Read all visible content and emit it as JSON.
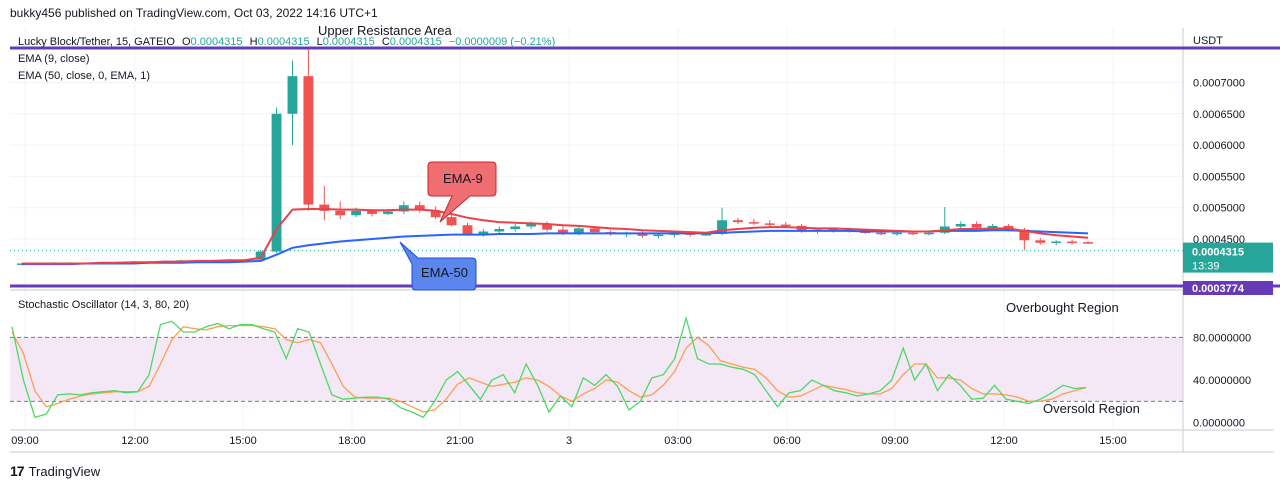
{
  "caption": "bukky456 published on TradingView.com, Oct 03, 2022 14:16 UTC+1",
  "footer": {
    "brand": "TradingView"
  },
  "colors": {
    "up": "#26a69a",
    "down": "#ef5350",
    "ema9": "#e8424b",
    "ema50": "#2962ff",
    "resistance": "#673ab7",
    "stoch_k": "#4cd964",
    "stoch_d": "#ff9d52",
    "stoch_band": "#f3e5f5"
  },
  "legend": {
    "symbol": "Lucky Block/Tether, 15, GATEIO",
    "o_label": "O",
    "o": "0.0004315",
    "h_label": "H",
    "h": "0.0004315",
    "l_label": "L",
    "l": "0.0004315",
    "c_label": "C",
    "c": "0.0004315",
    "change": "−0.0000009 (−0.21%)",
    "ema9": "EMA (9, close)",
    "ema50": "EMA (50, close, 0, EMA, 1)"
  },
  "annotations": {
    "upper_resistance": "Upper Resistance Area",
    "ema9_callout": "EMA-9",
    "ema50_callout": "EMA-50",
    "overbought": "Overbought Region",
    "oversold": "Oversold Region"
  },
  "price_axis": {
    "currency": "USDT",
    "ticks": [
      "0.0007000",
      "0.0006500",
      "0.0006000",
      "0.0005500",
      "0.0005000",
      "0.0004500"
    ],
    "last_price": "0.0004315",
    "countdown": "13:39",
    "support_price": "0.0003774"
  },
  "oscillator": {
    "title": "Stochastic Oscillator (14, 3, 80, 20)",
    "ticks": [
      "80.0000000",
      "40.0000000",
      "0.0000000"
    ]
  },
  "time_axis": [
    "09:00",
    "12:00",
    "15:00",
    "18:00",
    "21:00",
    "3",
    "03:00",
    "06:00",
    "09:00",
    "12:00",
    "15:00"
  ],
  "chart_data": [
    {
      "type": "candlestick",
      "title": "Lucky Block/Tether, 15, GATEIO",
      "ylabel": "USDT",
      "ylim": [
        0.000375,
        0.000755
      ],
      "resistance_level": 0.000755,
      "support_level": 0.0003774,
      "last_price": 0.0004315,
      "candles_ohlc": [
        [
          0.00041,
          0.000412,
          0.000408,
          0.000411
        ],
        [
          0.000411,
          0.000412,
          0.000409,
          0.00041
        ],
        [
          0.00041,
          0.000413,
          0.000409,
          0.000412
        ],
        [
          0.000412,
          0.000413,
          0.00041,
          0.000411
        ],
        [
          0.000411,
          0.000413,
          0.00041,
          0.000412
        ],
        [
          0.000412,
          0.000413,
          0.000411,
          0.000412
        ],
        [
          0.000412,
          0.000414,
          0.000411,
          0.000413
        ],
        [
          0.000413,
          0.000415,
          0.000412,
          0.000414
        ],
        [
          0.000414,
          0.000415,
          0.000413,
          0.000414
        ],
        [
          0.000414,
          0.000416,
          0.000413,
          0.000415
        ],
        [
          0.000415,
          0.000417,
          0.000414,
          0.000416
        ],
        [
          0.000416,
          0.000417,
          0.000414,
          0.000415
        ],
        [
          0.000415,
          0.000417,
          0.000414,
          0.000416
        ],
        [
          0.000416,
          0.000418,
          0.000415,
          0.000417
        ],
        [
          0.000417,
          0.000418,
          0.000416,
          0.000417
        ],
        [
          0.000417,
          0.000432,
          0.000416,
          0.00043
        ],
        [
          0.00043,
          0.00066,
          0.000428,
          0.00065
        ],
        [
          0.00065,
          0.000735,
          0.0006,
          0.00071
        ],
        [
          0.00071,
          0.000755,
          0.000495,
          0.000505
        ],
        [
          0.000505,
          0.000535,
          0.00048,
          0.000495
        ],
        [
          0.000495,
          0.00051,
          0.000482,
          0.000488
        ],
        [
          0.000488,
          0.0005,
          0.000485,
          0.000495
        ],
        [
          0.000495,
          0.000498,
          0.000486,
          0.00049
        ],
        [
          0.00049,
          0.000498,
          0.000488,
          0.000494
        ],
        [
          0.000494,
          0.00051,
          0.00049,
          0.000504
        ],
        [
          0.000504,
          0.00051,
          0.000492,
          0.000496
        ],
        [
          0.000496,
          0.000502,
          0.000482,
          0.000485
        ],
        [
          0.000485,
          0.00049,
          0.00047,
          0.000472
        ],
        [
          0.000472,
          0.000476,
          0.000455,
          0.000458
        ],
        [
          0.000458,
          0.000466,
          0.000454,
          0.000462
        ],
        [
          0.000462,
          0.00047,
          0.000458,
          0.000466
        ],
        [
          0.000466,
          0.000474,
          0.000462,
          0.00047
        ],
        [
          0.00047,
          0.000478,
          0.000466,
          0.000474
        ],
        [
          0.000474,
          0.000478,
          0.000462,
          0.000465
        ],
        [
          0.000465,
          0.00047,
          0.000456,
          0.00046
        ],
        [
          0.00046,
          0.00047,
          0.000456,
          0.000467
        ],
        [
          0.000467,
          0.00047,
          0.000458,
          0.000461
        ],
        [
          0.000461,
          0.000464,
          0.000455,
          0.000458
        ],
        [
          0.000458,
          0.000462,
          0.000453,
          0.00046
        ],
        [
          0.00046,
          0.000462,
          0.000452,
          0.000455
        ],
        [
          0.000455,
          0.00046,
          0.000451,
          0.000457
        ],
        [
          0.000457,
          0.000462,
          0.000452,
          0.000459
        ],
        [
          0.000459,
          0.000462,
          0.000454,
          0.000457
        ],
        [
          0.000457,
          0.00046,
          0.000455,
          0.000458
        ],
        [
          0.000458,
          0.0005,
          0.000456,
          0.00048
        ],
        [
          0.00048,
          0.000484,
          0.000474,
          0.000477
        ],
        [
          0.000477,
          0.000482,
          0.000472,
          0.000475
        ],
        [
          0.000475,
          0.00048,
          0.00047,
          0.000473
        ],
        [
          0.000473,
          0.000477,
          0.000468,
          0.000471
        ],
        [
          0.000471,
          0.000474,
          0.00046,
          0.000463
        ],
        [
          0.000463,
          0.000467,
          0.000458,
          0.000465
        ],
        [
          0.000465,
          0.000468,
          0.00046,
          0.000466
        ],
        [
          0.000466,
          0.000468,
          0.00046,
          0.000462
        ],
        [
          0.000462,
          0.000465,
          0.000458,
          0.00046
        ],
        [
          0.00046,
          0.000462,
          0.000456,
          0.000458
        ],
        [
          0.000458,
          0.000462,
          0.000455,
          0.00046
        ],
        [
          0.00046,
          0.000462,
          0.000456,
          0.000458
        ],
        [
          0.000458,
          0.000462,
          0.000456,
          0.00046
        ],
        [
          0.00046,
          0.000501,
          0.000458,
          0.00047
        ],
        [
          0.00047,
          0.000478,
          0.000466,
          0.000474
        ],
        [
          0.000474,
          0.000478,
          0.000466,
          0.000468
        ],
        [
          0.000468,
          0.000474,
          0.000464,
          0.000471
        ],
        [
          0.000471,
          0.000474,
          0.000462,
          0.000465
        ],
        [
          0.000465,
          0.000468,
          0.000432,
          0.000448
        ],
        [
          0.000448,
          0.000452,
          0.000441,
          0.000444
        ],
        [
          0.000444,
          0.000448,
          0.00044,
          0.000446
        ],
        [
          0.000446,
          0.000449,
          0.000441,
          0.000445
        ],
        [
          0.000445,
          0.000447,
          0.000442,
          0.000444
        ]
      ],
      "ema9": [
        0.000411,
        0.000411,
        0.000411,
        0.000411,
        0.000411,
        0.000412,
        0.000412,
        0.000413,
        0.000413,
        0.000414,
        0.000414,
        0.000415,
        0.000415,
        0.000416,
        0.000416,
        0.00042,
        0.000466,
        0.000497,
        0.000498,
        0.000498,
        0.000497,
        0.000497,
        0.000496,
        0.000496,
        0.000497,
        0.000497,
        0.000495,
        0.00049,
        0.000484,
        0.00048,
        0.000477,
        0.000476,
        0.000475,
        0.000474,
        0.000472,
        0.000471,
        0.000469,
        0.000467,
        0.000466,
        0.000464,
        0.000463,
        0.000462,
        0.000461,
        0.00046,
        0.000464,
        0.000466,
        0.000468,
        0.000469,
        0.000469,
        0.000468,
        0.000467,
        0.000467,
        0.000466,
        0.000465,
        0.000464,
        0.000463,
        0.000462,
        0.000462,
        0.000464,
        0.000466,
        0.000466,
        0.000467,
        0.000467,
        0.000463,
        0.000459,
        0.000456,
        0.000454,
        0.000452
      ],
      "ema50": [
        0.00041,
        0.00041,
        0.00041,
        0.00041,
        0.000411,
        0.000411,
        0.000411,
        0.000411,
        0.000412,
        0.000412,
        0.000412,
        0.000413,
        0.000413,
        0.000413,
        0.000414,
        0.000415,
        0.000425,
        0.000436,
        0.00044,
        0.000443,
        0.000446,
        0.000448,
        0.00045,
        0.000452,
        0.000454,
        0.000455,
        0.000456,
        0.000457,
        0.000457,
        0.000457,
        0.000458,
        0.000458,
        0.000458,
        0.000459,
        0.000459,
        0.000459,
        0.000459,
        0.000459,
        0.000459,
        0.000459,
        0.000459,
        0.000459,
        0.000459,
        0.000459,
        0.00046,
        0.000461,
        0.000462,
        0.000463,
        0.000463,
        0.000463,
        0.000463,
        0.000463,
        0.000463,
        0.000462,
        0.000462,
        0.000462,
        0.000462,
        0.000462,
        0.000463,
        0.000463,
        0.000463,
        0.000464,
        0.000464,
        0.000463,
        0.000462,
        0.000461,
        0.00046,
        0.000459
      ]
    },
    {
      "type": "line",
      "title": "Stochastic Oscillator (14, 3, 80, 20)",
      "ylim": [
        0,
        100
      ],
      "overbought": 80,
      "oversold": 20,
      "series": [
        {
          "name": "%K",
          "values": [
            90,
            40,
            5,
            8,
            26,
            27,
            26,
            28,
            29,
            30,
            28,
            29,
            45,
            92,
            95,
            85,
            85,
            90,
            93,
            88,
            92,
            92,
            88,
            85,
            60,
            88,
            85,
            55,
            26,
            22,
            23,
            24,
            24,
            22,
            14,
            10,
            5,
            20,
            40,
            48,
            35,
            22,
            40,
            45,
            28,
            55,
            35,
            10,
            25,
            15,
            42,
            35,
            45,
            34,
            12,
            20,
            42,
            45,
            60,
            98,
            60,
            55,
            55,
            52,
            50,
            45,
            30,
            15,
            28,
            30,
            40,
            35,
            30,
            28,
            25,
            27,
            30,
            40,
            70,
            40,
            55,
            30,
            45,
            35,
            22,
            23,
            35,
            22,
            20,
            18,
            22,
            28,
            35,
            32,
            33
          ]
        },
        {
          "name": "%D",
          "values": [
            85,
            65,
            30,
            15,
            18,
            22,
            25,
            27,
            28,
            29,
            29,
            29,
            34,
            55,
            78,
            90,
            88,
            87,
            90,
            91,
            91,
            91,
            90,
            88,
            78,
            75,
            78,
            75,
            55,
            34,
            24,
            23,
            23,
            23,
            20,
            15,
            10,
            12,
            22,
            36,
            42,
            38,
            34,
            36,
            38,
            42,
            40,
            34,
            25,
            20,
            27,
            32,
            40,
            38,
            30,
            24,
            26,
            35,
            48,
            70,
            80,
            72,
            58,
            55,
            52,
            50,
            42,
            30,
            24,
            25,
            30,
            35,
            33,
            31,
            28,
            27,
            27,
            32,
            45,
            55,
            55,
            42,
            42,
            40,
            32,
            27,
            27,
            26,
            24,
            20,
            20,
            22,
            27,
            30,
            33
          ]
        }
      ]
    }
  ]
}
